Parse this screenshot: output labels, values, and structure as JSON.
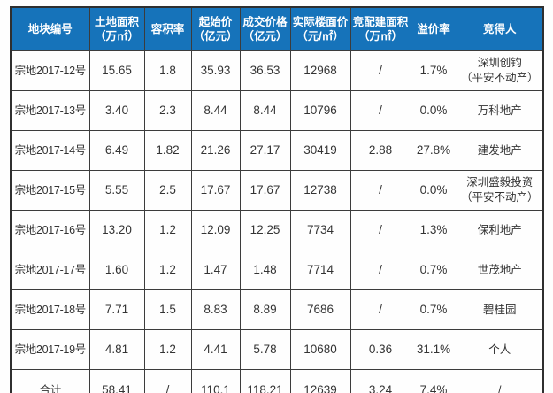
{
  "colors": {
    "header_bg": "#1673ba",
    "header_text": "#ffffff",
    "border": "#3c3c3c",
    "cell_text": "#333333",
    "background": "#fefefe"
  },
  "chart_data": {
    "type": "table",
    "title": "",
    "columns": [
      {
        "key": "parcel-id",
        "label": "地块编号",
        "unit": ""
      },
      {
        "key": "land-area",
        "label": "土地面积",
        "unit": "（万㎡）"
      },
      {
        "key": "plot-ratio",
        "label": "容积率",
        "unit": ""
      },
      {
        "key": "starting-price",
        "label": "起始价",
        "unit": "（亿元）"
      },
      {
        "key": "deal-price",
        "label": "成交价格",
        "unit": "（亿元）"
      },
      {
        "key": "floor-price",
        "label": "实际楼面价",
        "unit": "（元/㎡）"
      },
      {
        "key": "allocated-build-area",
        "label": "竞配建面积",
        "unit": "（万㎡）"
      },
      {
        "key": "premium-rate",
        "label": "溢价率",
        "unit": ""
      },
      {
        "key": "winner",
        "label": "竞得人",
        "unit": ""
      }
    ],
    "rows": [
      {
        "is_total": false,
        "cells": [
          "宗地2017-12号",
          "15.65",
          "1.8",
          "35.93",
          "36.53",
          "12968",
          "/",
          "1.7%",
          "深圳创钧\n（平安不动产）"
        ]
      },
      {
        "is_total": false,
        "cells": [
          "宗地2017-13号",
          "3.40",
          "2.3",
          "8.44",
          "8.44",
          "10796",
          "/",
          "0.0%",
          "万科地产"
        ]
      },
      {
        "is_total": false,
        "cells": [
          "宗地2017-14号",
          "6.49",
          "1.82",
          "21.26",
          "27.17",
          "30419",
          "2.88",
          "27.8%",
          "建发地产"
        ]
      },
      {
        "is_total": false,
        "cells": [
          "宗地2017-15号",
          "5.55",
          "2.5",
          "17.67",
          "17.67",
          "12738",
          "/",
          "0.0%",
          "深圳盛毅投资\n（平安不动产）"
        ]
      },
      {
        "is_total": false,
        "cells": [
          "宗地2017-16号",
          "13.20",
          "1.2",
          "12.09",
          "12.25",
          "7734",
          "/",
          "1.3%",
          "保利地产"
        ]
      },
      {
        "is_total": false,
        "cells": [
          "宗地2017-17号",
          "1.60",
          "1.2",
          "1.47",
          "1.48",
          "7714",
          "/",
          "0.7%",
          "世茂地产"
        ]
      },
      {
        "is_total": false,
        "cells": [
          "宗地2017-18号",
          "7.71",
          "1.5",
          "8.83",
          "8.89",
          "7686",
          "/",
          "0.7%",
          "碧桂园"
        ]
      },
      {
        "is_total": false,
        "cells": [
          "宗地2017-19号",
          "4.81",
          "1.2",
          "4.41",
          "5.78",
          "10680",
          "0.36",
          "31.1%",
          "个人"
        ]
      },
      {
        "is_total": true,
        "cells": [
          "合计",
          "58.41",
          "/",
          "110.1",
          "118.21",
          "12639",
          "3.24",
          "7.4%",
          "/"
        ]
      }
    ]
  }
}
